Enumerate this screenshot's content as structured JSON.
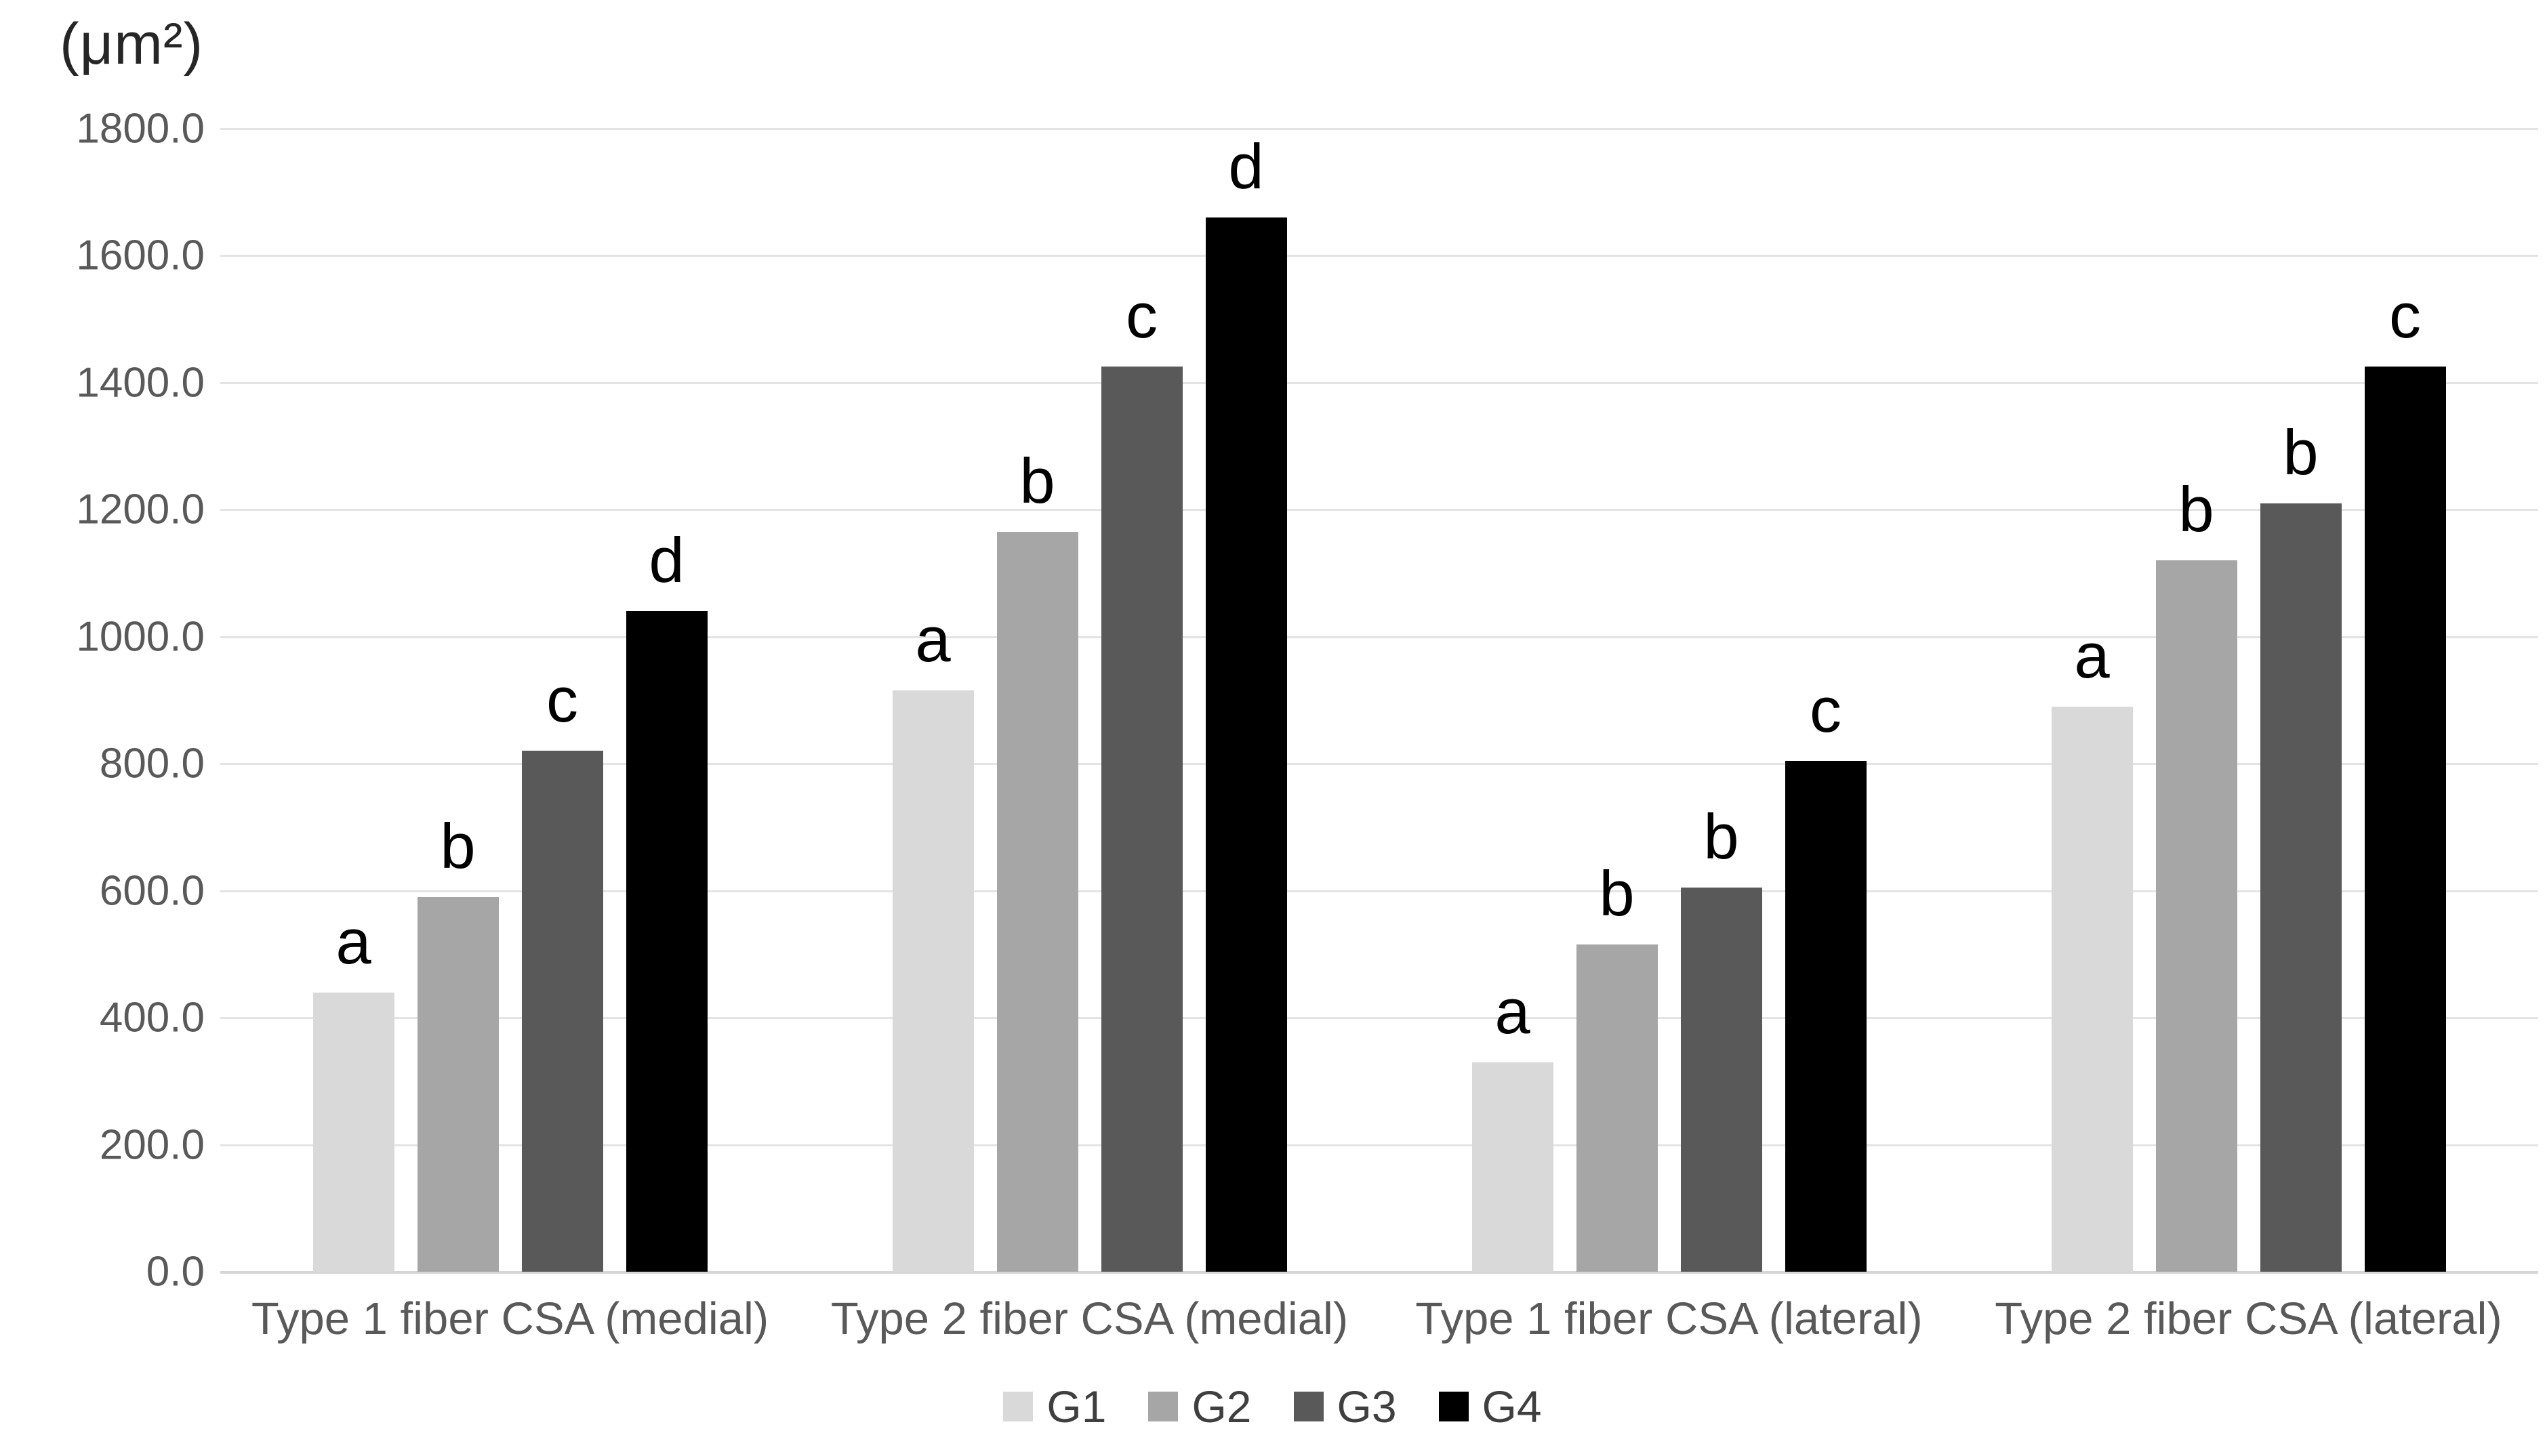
{
  "title": "(μm²)",
  "chart_data": {
    "type": "bar",
    "title": "(μm²)",
    "xlabel": "",
    "ylabel": "(μm²)",
    "ylim": [
      0,
      1800
    ],
    "ytick_step": 200,
    "ytick_labels": [
      "1800.0",
      "1600.0",
      "1400.0",
      "1200.0",
      "1000.0",
      "800.0",
      "600.0",
      "400.0",
      "200.0",
      "0.0"
    ],
    "grid": true,
    "legend_position": "bottom",
    "categories": [
      "Type 1 fiber CSA (medial)",
      "Type 2 fiber CSA (medial)",
      "Type 1 fiber CSA (lateral)",
      "Type 2 fiber CSA (lateral)"
    ],
    "series": [
      {
        "name": "G1",
        "color": "#d9d9d9",
        "values": [
          440,
          915,
          330,
          890
        ],
        "letters": [
          "a",
          "a",
          "a",
          "a"
        ]
      },
      {
        "name": "G2",
        "color": "#a6a6a6",
        "values": [
          590,
          1165,
          515,
          1120
        ],
        "letters": [
          "b",
          "b",
          "b",
          "b"
        ]
      },
      {
        "name": "G3",
        "color": "#595959",
        "values": [
          820,
          1425,
          605,
          1210
        ],
        "letters": [
          "c",
          "c",
          "b",
          "b"
        ]
      },
      {
        "name": "G4",
        "color": "#000000",
        "values": [
          1040,
          1660,
          805,
          1425
        ],
        "letters": [
          "d",
          "d",
          "c",
          "c"
        ]
      }
    ]
  },
  "legend": {
    "items": [
      {
        "label": "G1",
        "color": "#d9d9d9"
      },
      {
        "label": "G2",
        "color": "#a6a6a6"
      },
      {
        "label": "G3",
        "color": "#595959"
      },
      {
        "label": "G4",
        "color": "#000000"
      }
    ]
  },
  "style": {
    "gridline_color": "#e4e4e4",
    "axis_line_color": "#d6d6d6",
    "tick_text_color": "#595959",
    "category_text_color": "#595959",
    "letter_color": "#000000"
  }
}
